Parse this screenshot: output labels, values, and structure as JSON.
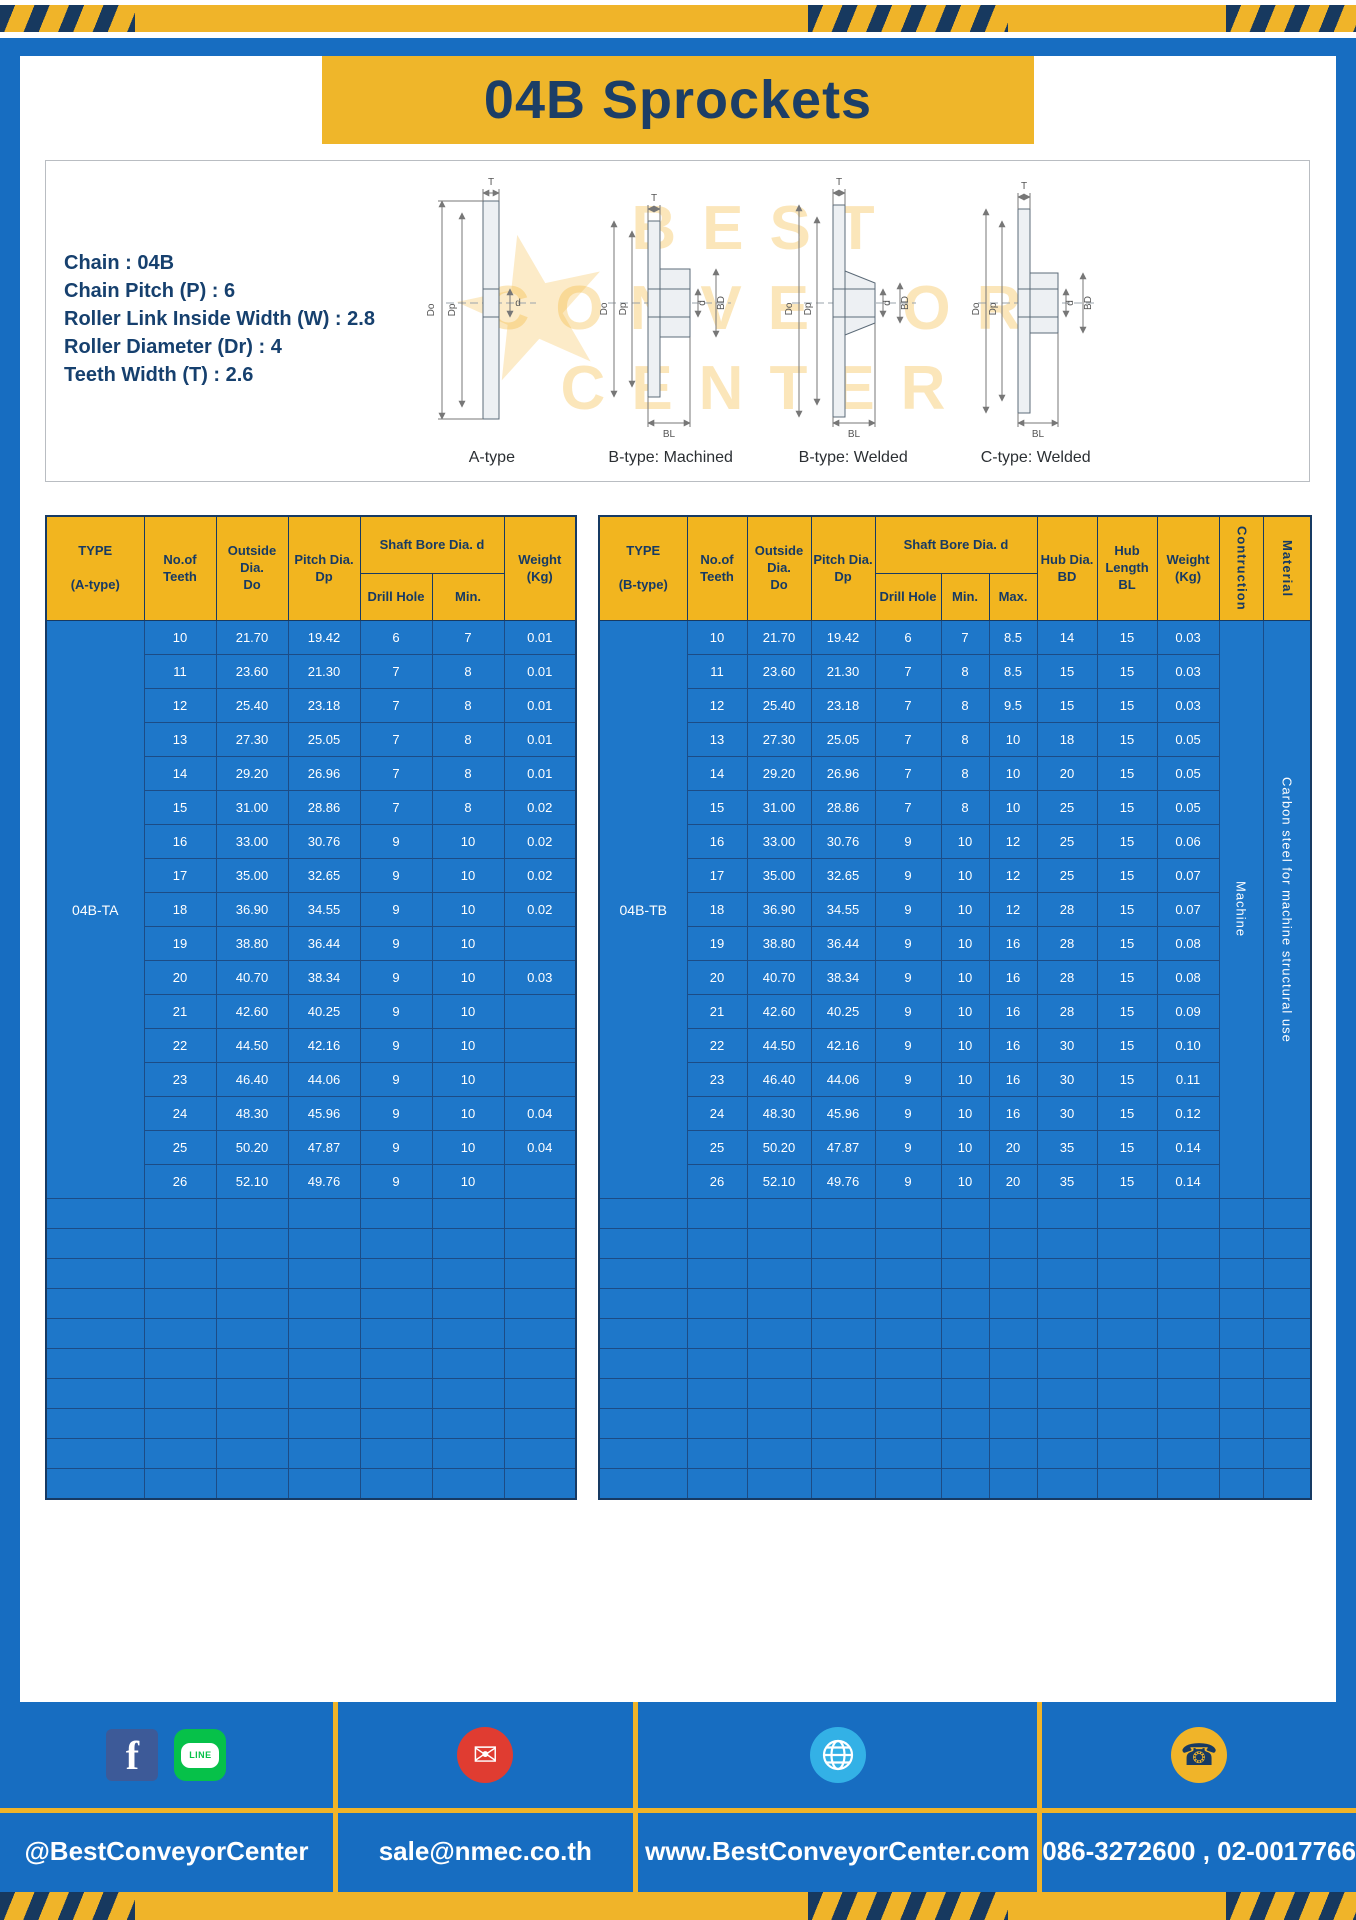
{
  "title": "04B Sprockets",
  "specs": [
    "Chain : 04B",
    "Chain Pitch (P) : 6",
    "Roller Link Inside Width (W) : 2.8",
    "Roller Diameter (Dr) : 4",
    "Teeth Width (T) : 2.6"
  ],
  "diagram": {
    "watermark": [
      "BEST",
      "CONVEYOR",
      "CENTER"
    ],
    "star": "★",
    "labels": [
      "A-type",
      "B-type: Machined",
      "B-type: Welded",
      "C-type: Welded"
    ],
    "dim": {
      "t": "T",
      "do": "Do",
      "dp": "Dp",
      "d": "d",
      "bd": "BD",
      "bl": "BL"
    }
  },
  "table_a": {
    "headers": {
      "type": "TYPE\n\n(A-type)",
      "teeth": "No.of\nTeeth",
      "outside": "Outside\nDia.\nDo",
      "pitch": "Pitch Dia.\nDp",
      "shaft_bore": "Shaft Bore Dia. d",
      "drill": "Drill Hole",
      "min": "Min.",
      "weight": "Weight\n(Kg)"
    },
    "type_value": "04B-TA",
    "rows": [
      [
        "10",
        "21.70",
        "19.42",
        "6",
        "7",
        "0.01"
      ],
      [
        "11",
        "23.60",
        "21.30",
        "7",
        "8",
        "0.01"
      ],
      [
        "12",
        "25.40",
        "23.18",
        "7",
        "8",
        "0.01"
      ],
      [
        "13",
        "27.30",
        "25.05",
        "7",
        "8",
        "0.01"
      ],
      [
        "14",
        "29.20",
        "26.96",
        "7",
        "8",
        "0.01"
      ],
      [
        "15",
        "31.00",
        "28.86",
        "7",
        "8",
        "0.02"
      ],
      [
        "16",
        "33.00",
        "30.76",
        "9",
        "10",
        "0.02"
      ],
      [
        "17",
        "35.00",
        "32.65",
        "9",
        "10",
        "0.02"
      ],
      [
        "18",
        "36.90",
        "34.55",
        "9",
        "10",
        "0.02"
      ],
      [
        "19",
        "38.80",
        "36.44",
        "9",
        "10",
        ""
      ],
      [
        "20",
        "40.70",
        "38.34",
        "9",
        "10",
        "0.03"
      ],
      [
        "21",
        "42.60",
        "40.25",
        "9",
        "10",
        ""
      ],
      [
        "22",
        "44.50",
        "42.16",
        "9",
        "10",
        ""
      ],
      [
        "23",
        "46.40",
        "44.06",
        "9",
        "10",
        ""
      ],
      [
        "24",
        "48.30",
        "45.96",
        "9",
        "10",
        "0.04"
      ],
      [
        "25",
        "50.20",
        "47.87",
        "9",
        "10",
        "0.04"
      ],
      [
        "26",
        "52.10",
        "49.76",
        "9",
        "10",
        ""
      ]
    ],
    "empty_rows": 10
  },
  "table_b": {
    "headers": {
      "type": "TYPE\n\n(B-type)",
      "teeth": "No.of\nTeeth",
      "outside": "Outside\nDia.\nDo",
      "pitch": "Pitch Dia.\nDp",
      "shaft_bore": "Shaft Bore Dia. d",
      "drill": "Drill Hole",
      "min": "Min.",
      "max": "Max.",
      "hub_dia": "Hub Dia.\nBD",
      "hub_len": "Hub\nLength\nBL",
      "weight": "Weight\n(Kg)",
      "construction": "Contruction",
      "material": "Material"
    },
    "type_value": "04B-TB",
    "construction_value": "Machine",
    "material_value": "Carbon steel for machine structural use",
    "rows": [
      [
        "10",
        "21.70",
        "19.42",
        "6",
        "7",
        "8.5",
        "14",
        "15",
        "0.03"
      ],
      [
        "11",
        "23.60",
        "21.30",
        "7",
        "8",
        "8.5",
        "15",
        "15",
        "0.03"
      ],
      [
        "12",
        "25.40",
        "23.18",
        "7",
        "8",
        "9.5",
        "15",
        "15",
        "0.03"
      ],
      [
        "13",
        "27.30",
        "25.05",
        "7",
        "8",
        "10",
        "18",
        "15",
        "0.05"
      ],
      [
        "14",
        "29.20",
        "26.96",
        "7",
        "8",
        "10",
        "20",
        "15",
        "0.05"
      ],
      [
        "15",
        "31.00",
        "28.86",
        "7",
        "8",
        "10",
        "25",
        "15",
        "0.05"
      ],
      [
        "16",
        "33.00",
        "30.76",
        "9",
        "10",
        "12",
        "25",
        "15",
        "0.06"
      ],
      [
        "17",
        "35.00",
        "32.65",
        "9",
        "10",
        "12",
        "25",
        "15",
        "0.07"
      ],
      [
        "18",
        "36.90",
        "34.55",
        "9",
        "10",
        "12",
        "28",
        "15",
        "0.07"
      ],
      [
        "19",
        "38.80",
        "36.44",
        "9",
        "10",
        "16",
        "28",
        "15",
        "0.08"
      ],
      [
        "20",
        "40.70",
        "38.34",
        "9",
        "10",
        "16",
        "28",
        "15",
        "0.08"
      ],
      [
        "21",
        "42.60",
        "40.25",
        "9",
        "10",
        "16",
        "28",
        "15",
        "0.09"
      ],
      [
        "22",
        "44.50",
        "42.16",
        "9",
        "10",
        "16",
        "30",
        "15",
        "0.10"
      ],
      [
        "23",
        "46.40",
        "44.06",
        "9",
        "10",
        "16",
        "30",
        "15",
        "0.11"
      ],
      [
        "24",
        "48.30",
        "45.96",
        "9",
        "10",
        "16",
        "30",
        "15",
        "0.12"
      ],
      [
        "25",
        "50.20",
        "47.87",
        "9",
        "10",
        "20",
        "35",
        "15",
        "0.14"
      ],
      [
        "26",
        "52.10",
        "49.76",
        "9",
        "10",
        "20",
        "35",
        "15",
        "0.14"
      ]
    ],
    "empty_rows": 10
  },
  "footer": {
    "facebook_glyph": "f",
    "line_label": "LINE",
    "email_glyph": "✉",
    "phone_glyph": "☎",
    "social_text": "@BestConveyorCenter",
    "email_text": "sale@nmec.co.th",
    "website_text": "www.BestConveyorCenter.com",
    "phone_text": "086-3272600 , 02-0017766"
  }
}
